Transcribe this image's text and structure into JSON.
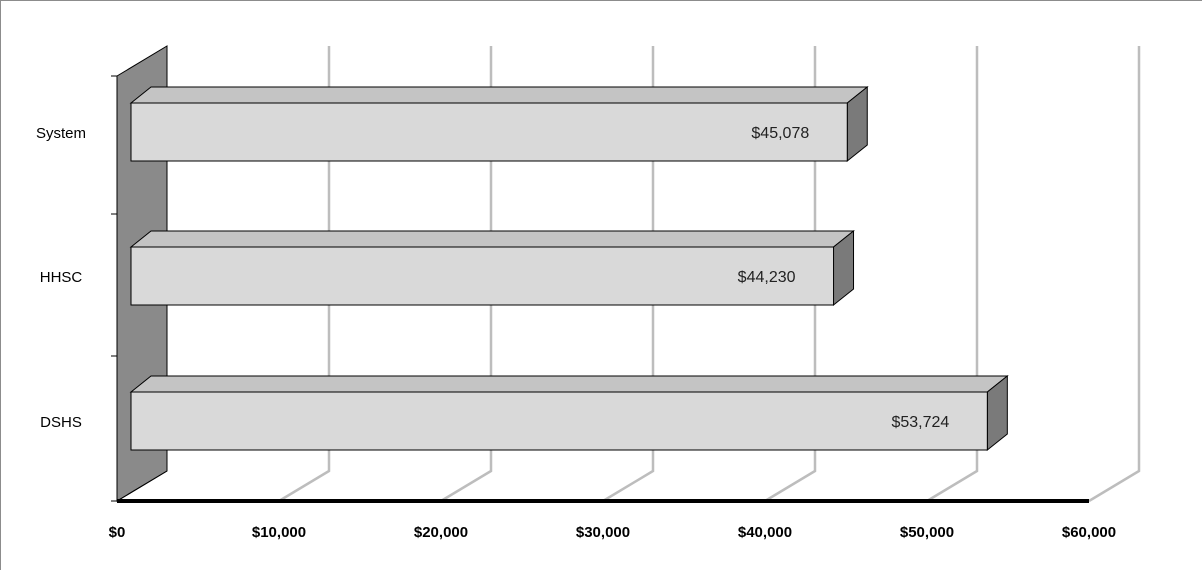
{
  "chart_data": {
    "type": "bar",
    "orientation": "horizontal",
    "style": "3d",
    "categories": [
      "System",
      "HHSC",
      "DSHS"
    ],
    "values": [
      45078,
      44230,
      53724
    ],
    "value_labels": [
      "$45,078",
      "$44,230",
      "$53,724"
    ],
    "xlim": [
      0,
      60000
    ],
    "x_ticks": [
      0,
      10000,
      20000,
      30000,
      40000,
      50000,
      60000
    ],
    "x_tick_labels": [
      "$0",
      "$10,000",
      "$20,000",
      "$30,000",
      "$40,000",
      "$50,000",
      "$60,000"
    ],
    "grid": true,
    "legend": "none",
    "colors": {
      "bar_front": "#d9d9d9",
      "bar_top": "#c4c4c4",
      "bar_side": "#7a7a7a",
      "wall": "#8a8a8a",
      "grid": "#bdbdbd",
      "axis": "#000000"
    }
  }
}
